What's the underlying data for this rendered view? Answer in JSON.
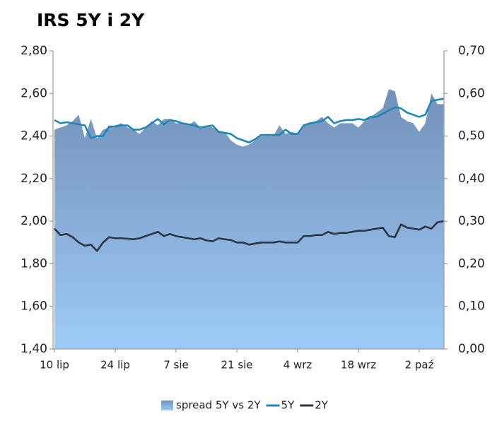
{
  "chart_data": {
    "type": "line",
    "title": "IRS 5Y i 2Y",
    "categories": [
      "10 lip",
      null,
      null,
      null,
      null,
      null,
      null,
      null,
      null,
      null,
      "24 lip",
      null,
      null,
      null,
      null,
      null,
      null,
      null,
      null,
      null,
      "7 sie",
      null,
      null,
      null,
      null,
      null,
      null,
      null,
      null,
      null,
      "21 sie",
      null,
      null,
      null,
      null,
      null,
      null,
      null,
      null,
      null,
      "4 wrz",
      null,
      null,
      null,
      null,
      null,
      null,
      null,
      null,
      null,
      "18 wrz",
      null,
      null,
      null,
      null,
      null,
      null,
      null,
      null,
      null,
      "2 paź",
      null,
      null,
      null,
      null
    ],
    "series": [
      {
        "name": "spread 5Y vs 2Y",
        "type": "area",
        "axis": "y2",
        "color": "#7391b8",
        "values": [
          0.515,
          0.52,
          0.525,
          0.535,
          0.55,
          0.495,
          0.54,
          0.495,
          0.515,
          0.52,
          0.525,
          0.53,
          0.52,
          0.515,
          0.505,
          0.52,
          0.535,
          0.525,
          0.54,
          0.54,
          0.53,
          0.53,
          0.525,
          0.535,
          0.52,
          0.525,
          0.52,
          0.51,
          0.51,
          0.49,
          0.48,
          0.475,
          0.48,
          0.49,
          0.5,
          0.5,
          0.5,
          0.525,
          0.505,
          0.51,
          0.505,
          0.525,
          0.53,
          0.535,
          0.545,
          0.53,
          0.52,
          0.53,
          0.53,
          0.53,
          0.52,
          0.535,
          0.545,
          0.555,
          0.565,
          0.61,
          0.605,
          0.545,
          0.535,
          0.53,
          0.51,
          0.53,
          0.6,
          0.575,
          0.575
        ]
      },
      {
        "name": "5Y",
        "type": "line",
        "color": "#1f86b8",
        "values": [
          2.475,
          2.46,
          2.465,
          2.46,
          2.455,
          2.45,
          2.39,
          2.4,
          2.4,
          2.445,
          2.445,
          2.45,
          2.45,
          2.43,
          2.43,
          2.44,
          2.46,
          2.48,
          2.455,
          2.475,
          2.47,
          2.46,
          2.455,
          2.45,
          2.44,
          2.445,
          2.45,
          2.42,
          2.415,
          2.41,
          2.39,
          2.38,
          2.37,
          2.385,
          2.405,
          2.405,
          2.405,
          2.405,
          2.43,
          2.41,
          2.41,
          2.45,
          2.46,
          2.465,
          2.47,
          2.49,
          2.46,
          2.47,
          2.475,
          2.475,
          2.48,
          2.475,
          2.49,
          2.49,
          2.505,
          2.52,
          2.535,
          2.53,
          2.51,
          2.5,
          2.49,
          2.5,
          2.565,
          2.57,
          2.575
        ]
      },
      {
        "name": "2Y",
        "type": "line",
        "color": "#2d3540",
        "values": [
          1.965,
          1.935,
          1.94,
          1.925,
          1.9,
          1.885,
          1.89,
          1.86,
          1.9,
          1.925,
          1.92,
          1.92,
          1.918,
          1.915,
          1.92,
          1.93,
          1.94,
          1.95,
          1.93,
          1.94,
          1.93,
          1.925,
          1.92,
          1.915,
          1.92,
          1.91,
          1.905,
          1.92,
          1.915,
          1.912,
          1.9,
          1.9,
          1.89,
          1.895,
          1.9,
          1.9,
          1.9,
          1.905,
          1.9,
          1.9,
          1.9,
          1.93,
          1.93,
          1.935,
          1.935,
          1.95,
          1.94,
          1.945,
          1.945,
          1.95,
          1.955,
          1.955,
          1.96,
          1.965,
          1.97,
          1.93,
          1.925,
          1.985,
          1.97,
          1.965,
          1.96,
          1.975,
          1.965,
          1.995,
          2.0
        ]
      }
    ],
    "ylim": [
      1.4,
      2.8
    ],
    "yticks": [
      {
        "value": 1.4,
        "label": "1,40"
      },
      {
        "value": 1.6,
        "label": "1,60"
      },
      {
        "value": 1.8,
        "label": "1,80"
      },
      {
        "value": 2.0,
        "label": "2,00"
      },
      {
        "value": 2.2,
        "label": "2,20"
      },
      {
        "value": 2.4,
        "label": "2,40"
      },
      {
        "value": 2.6,
        "label": "2,60"
      },
      {
        "value": 2.8,
        "label": "2,80"
      }
    ],
    "y2lim": [
      0,
      0.7
    ],
    "y2ticks": [
      {
        "value": 0,
        "label": "0,00"
      },
      {
        "value": 0.1,
        "label": "0,10"
      },
      {
        "value": 0.2,
        "label": "0,20"
      },
      {
        "value": 0.3,
        "label": "0,30"
      },
      {
        "value": 0.4,
        "label": "0,40"
      },
      {
        "value": 0.5,
        "label": "0,50"
      },
      {
        "value": 0.6,
        "label": "0,60"
      },
      {
        "value": 0.7,
        "label": "0,70"
      }
    ],
    "legend": "bottom"
  }
}
